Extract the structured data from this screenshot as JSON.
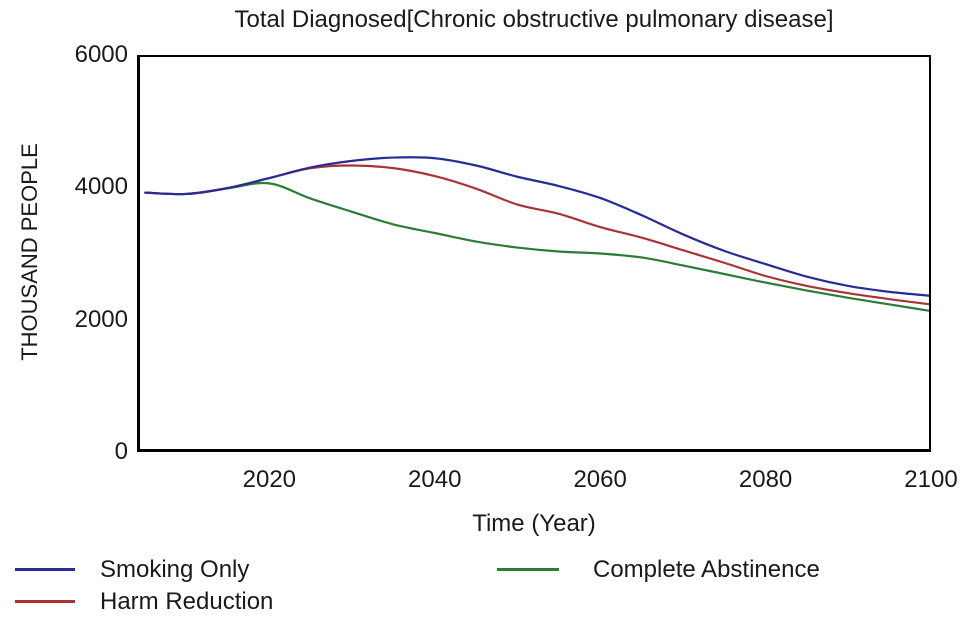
{
  "chart_data": {
    "type": "line",
    "title": "Total Diagnosed[Chronic obstructive pulmonary disease]",
    "xlabel": "Time (Year)",
    "ylabel": "THOUSAND PEOPLE",
    "x_range": [
      2004,
      2100
    ],
    "y_range": [
      0,
      6000
    ],
    "x_ticks": [
      "2020",
      "2040",
      "2060",
      "2080",
      "2100"
    ],
    "x_tick_values": [
      2020,
      2040,
      2060,
      2080,
      2100
    ],
    "y_ticks": [
      "0",
      "2000",
      "4000",
      "6000"
    ],
    "y_tick_values": [
      0,
      2000,
      4000,
      6000
    ],
    "grid": false,
    "legend_position": "bottom",
    "frame_color": "#000000",
    "x": [
      2005,
      2010,
      2015,
      2020,
      2025,
      2030,
      2035,
      2040,
      2045,
      2050,
      2055,
      2060,
      2065,
      2070,
      2075,
      2080,
      2085,
      2090,
      2095,
      2100
    ],
    "series": [
      {
        "name": "Smoking Only",
        "color": "#282c94",
        "values": [
          3920,
          3900,
          3990,
          4140,
          4300,
          4400,
          4450,
          4440,
          4330,
          4160,
          4020,
          3840,
          3580,
          3290,
          3040,
          2840,
          2650,
          2510,
          2420,
          2360
        ]
      },
      {
        "name": "Harm Reduction",
        "color": "#a93437",
        "values": [
          3920,
          3900,
          3990,
          4140,
          4290,
          4330,
          4290,
          4170,
          3980,
          3740,
          3600,
          3400,
          3240,
          3050,
          2860,
          2660,
          2510,
          2400,
          2310,
          2230
        ]
      },
      {
        "name": "Complete Abstinence",
        "color": "#2c7d38",
        "values": [
          3920,
          3900,
          3985,
          4060,
          3830,
          3630,
          3440,
          3310,
          3180,
          3090,
          3030,
          3000,
          2940,
          2820,
          2690,
          2560,
          2440,
          2330,
          2230,
          2130
        ]
      }
    ]
  }
}
